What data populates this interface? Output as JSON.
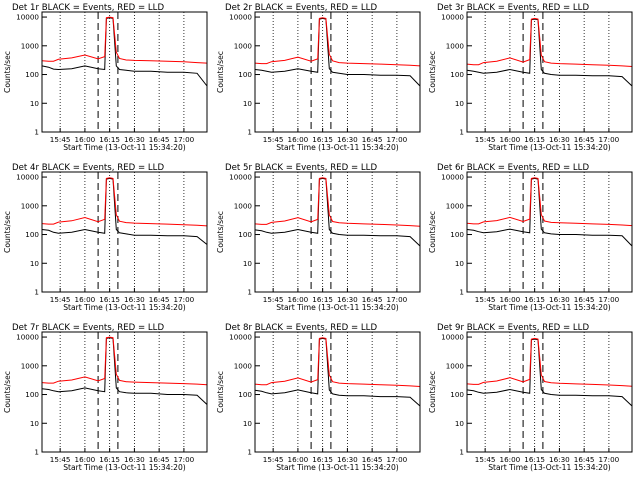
{
  "colors": {
    "events": "#000000",
    "lld": "#ff0000",
    "background": "#ffffff"
  },
  "figure": {
    "xlabel": "Start Time (13-Oct-11 15:34:20)",
    "ylabel": "Counts/sec",
    "x_tick_labels": [
      "15:45",
      "16:00",
      "16:15",
      "16:30",
      "16:45",
      "17:00"
    ],
    "y_tick_labels": [
      "1",
      "10",
      "100",
      "1000",
      "10000"
    ]
  },
  "chart_data": [
    {
      "type": "line",
      "title": "Det 1r BLACK = Events, RED = LLD",
      "scale_y": "log",
      "x": [
        "15:34",
        "15:38",
        "15:41",
        "15:44",
        "15:52",
        "16:00",
        "16:08",
        "16:12",
        "16:13",
        "16:15",
        "16:17",
        "16:19",
        "16:21",
        "16:25",
        "16:30",
        "16:40",
        "16:50",
        "17:00",
        "17:08",
        "17:14"
      ],
      "ylim": [
        1,
        15000
      ],
      "xlim": [
        "15:34",
        "17:14"
      ],
      "series": [
        {
          "name": "Events",
          "values": [
            200,
            180,
            155,
            150,
            160,
            200,
            160,
            150,
            9000,
            9500,
            9000,
            200,
            150,
            140,
            130,
            130,
            120,
            120,
            110,
            40
          ]
        },
        {
          "name": "LLD",
          "values": [
            300,
            290,
            290,
            340,
            380,
            480,
            350,
            420,
            9500,
            10000,
            9500,
            600,
            360,
            320,
            310,
            300,
            290,
            280,
            260,
            250
          ]
        }
      ],
      "dashed_verticals": [
        "16:08",
        "16:20"
      ],
      "dotted_verticals": [
        "15:45",
        "16:00",
        "16:15",
        "16:30",
        "16:45",
        "17:00"
      ]
    },
    {
      "type": "line",
      "title": "Det 2r BLACK = Events, RED = LLD",
      "scale_y": "log",
      "x": [
        "15:34",
        "15:38",
        "15:41",
        "15:44",
        "15:52",
        "16:00",
        "16:08",
        "16:12",
        "16:13",
        "16:15",
        "16:17",
        "16:19",
        "16:21",
        "16:25",
        "16:30",
        "16:40",
        "16:50",
        "17:00",
        "17:08",
        "17:14"
      ],
      "ylim": [
        1,
        15000
      ],
      "xlim": [
        "15:34",
        "17:14"
      ],
      "series": [
        {
          "name": "Events",
          "values": [
            150,
            140,
            130,
            120,
            130,
            160,
            130,
            120,
            8500,
            9000,
            8500,
            160,
            120,
            110,
            100,
            100,
            95,
            95,
            90,
            40
          ]
        },
        {
          "name": "LLD",
          "values": [
            250,
            240,
            240,
            280,
            310,
            400,
            290,
            350,
            9000,
            9500,
            9000,
            500,
            300,
            260,
            250,
            240,
            230,
            220,
            210,
            200
          ]
        }
      ],
      "dashed_verticals": [
        "16:08",
        "16:20"
      ],
      "dotted_verticals": [
        "15:45",
        "16:00",
        "16:15",
        "16:30",
        "16:45",
        "17:00"
      ]
    },
    {
      "type": "line",
      "title": "Det 3r BLACK = Events, RED = LLD",
      "scale_y": "log",
      "x": [
        "15:34",
        "15:38",
        "15:41",
        "15:44",
        "15:52",
        "16:00",
        "16:08",
        "16:12",
        "16:13",
        "16:15",
        "16:17",
        "16:19",
        "16:21",
        "16:25",
        "16:30",
        "16:40",
        "16:50",
        "17:00",
        "17:08",
        "17:14"
      ],
      "ylim": [
        1,
        15000
      ],
      "xlim": [
        "15:34",
        "17:14"
      ],
      "series": [
        {
          "name": "Events",
          "values": [
            140,
            130,
            120,
            110,
            120,
            150,
            120,
            110,
            8000,
            8500,
            8000,
            150,
            110,
            100,
            95,
            95,
            90,
            90,
            85,
            40
          ]
        },
        {
          "name": "LLD",
          "values": [
            230,
            220,
            220,
            260,
            290,
            380,
            270,
            330,
            8500,
            9000,
            8500,
            480,
            280,
            250,
            240,
            230,
            220,
            210,
            200,
            190
          ]
        }
      ],
      "dashed_verticals": [
        "16:08",
        "16:20"
      ],
      "dotted_verticals": [
        "15:45",
        "16:00",
        "16:15",
        "16:30",
        "16:45",
        "17:00"
      ]
    },
    {
      "type": "line",
      "title": "Det 4r BLACK = Events, RED = LLD",
      "scale_y": "log",
      "x": [
        "15:34",
        "15:38",
        "15:41",
        "15:44",
        "15:52",
        "16:00",
        "16:08",
        "16:12",
        "16:13",
        "16:15",
        "16:17",
        "16:19",
        "16:21",
        "16:25",
        "16:30",
        "16:40",
        "16:50",
        "17:00",
        "17:08",
        "17:14"
      ],
      "ylim": [
        1,
        15000
      ],
      "xlim": [
        "15:34",
        "17:14"
      ],
      "series": [
        {
          "name": "Events",
          "values": [
            150,
            140,
            120,
            110,
            120,
            150,
            120,
            110,
            8500,
            9000,
            8500,
            150,
            115,
            105,
            95,
            95,
            90,
            90,
            85,
            45
          ]
        },
        {
          "name": "LLD",
          "values": [
            240,
            230,
            230,
            270,
            300,
            390,
            280,
            340,
            9000,
            9500,
            9000,
            490,
            290,
            260,
            250,
            240,
            230,
            220,
            210,
            200
          ]
        }
      ],
      "dashed_verticals": [
        "16:08",
        "16:20"
      ],
      "dotted_verticals": [
        "15:45",
        "16:00",
        "16:15",
        "16:30",
        "16:45",
        "17:00"
      ]
    },
    {
      "type": "line",
      "title": "Det 5r BLACK = Events, RED = LLD",
      "scale_y": "log",
      "x": [
        "15:34",
        "15:38",
        "15:41",
        "15:44",
        "15:52",
        "16:00",
        "16:08",
        "16:12",
        "16:13",
        "16:15",
        "16:17",
        "16:19",
        "16:21",
        "16:25",
        "16:30",
        "16:40",
        "16:50",
        "17:00",
        "17:08",
        "17:14"
      ],
      "ylim": [
        1,
        15000
      ],
      "xlim": [
        "15:34",
        "17:14"
      ],
      "series": [
        {
          "name": "Events",
          "values": [
            145,
            135,
            120,
            110,
            120,
            150,
            120,
            110,
            8500,
            9000,
            8500,
            150,
            110,
            100,
            95,
            95,
            90,
            90,
            85,
            40
          ]
        },
        {
          "name": "LLD",
          "values": [
            235,
            225,
            225,
            265,
            295,
            385,
            275,
            335,
            9000,
            9500,
            9000,
            485,
            285,
            255,
            245,
            235,
            225,
            215,
            205,
            195
          ]
        }
      ],
      "dashed_verticals": [
        "16:08",
        "16:20"
      ],
      "dotted_verticals": [
        "15:45",
        "16:00",
        "16:15",
        "16:30",
        "16:45",
        "17:00"
      ]
    },
    {
      "type": "line",
      "title": "Det 6r BLACK = Events, RED = LLD",
      "scale_y": "log",
      "x": [
        "15:34",
        "15:38",
        "15:41",
        "15:44",
        "15:52",
        "16:00",
        "16:08",
        "16:12",
        "16:13",
        "16:15",
        "16:17",
        "16:19",
        "16:21",
        "16:25",
        "16:30",
        "16:40",
        "16:50",
        "17:00",
        "17:08",
        "17:14"
      ],
      "ylim": [
        1,
        15000
      ],
      "xlim": [
        "15:34",
        "17:14"
      ],
      "series": [
        {
          "name": "Events",
          "values": [
            150,
            140,
            125,
            115,
            125,
            155,
            125,
            115,
            8500,
            9000,
            8500,
            155,
            115,
            105,
            100,
            100,
            95,
            95,
            90,
            40
          ]
        },
        {
          "name": "LLD",
          "values": [
            245,
            235,
            235,
            275,
            305,
            395,
            285,
            345,
            9000,
            9500,
            9000,
            495,
            295,
            265,
            255,
            245,
            235,
            225,
            215,
            205
          ]
        }
      ],
      "dashed_verticals": [
        "16:08",
        "16:20"
      ],
      "dotted_verticals": [
        "15:45",
        "16:00",
        "16:15",
        "16:30",
        "16:45",
        "17:00"
      ]
    },
    {
      "type": "line",
      "title": "Det 7r BLACK = Events, RED = LLD",
      "scale_y": "log",
      "x": [
        "15:34",
        "15:38",
        "15:41",
        "15:44",
        "15:52",
        "16:00",
        "16:08",
        "16:12",
        "16:13",
        "16:15",
        "16:17",
        "16:19",
        "16:21",
        "16:25",
        "16:30",
        "16:40",
        "16:50",
        "17:00",
        "17:08",
        "17:14"
      ],
      "ylim": [
        1,
        15000
      ],
      "xlim": [
        "15:34",
        "17:14"
      ],
      "series": [
        {
          "name": "Events",
          "values": [
            160,
            150,
            135,
            125,
            135,
            170,
            135,
            125,
            9000,
            9500,
            9000,
            170,
            125,
            115,
            110,
            110,
            100,
            100,
            95,
            45
          ]
        },
        {
          "name": "LLD",
          "values": [
            260,
            250,
            250,
            290,
            320,
            410,
            300,
            360,
            9500,
            10000,
            9500,
            510,
            310,
            280,
            270,
            260,
            250,
            240,
            230,
            220
          ]
        }
      ],
      "dashed_verticals": [
        "16:08",
        "16:20"
      ],
      "dotted_verticals": [
        "15:45",
        "16:00",
        "16:15",
        "16:30",
        "16:45",
        "17:00"
      ]
    },
    {
      "type": "line",
      "title": "Det 8r BLACK = Events, RED = LLD",
      "scale_y": "log",
      "x": [
        "15:34",
        "15:38",
        "15:41",
        "15:44",
        "15:52",
        "16:00",
        "16:08",
        "16:12",
        "16:13",
        "16:15",
        "16:17",
        "16:19",
        "16:21",
        "16:25",
        "16:30",
        "16:40",
        "16:50",
        "17:00",
        "17:08",
        "17:14"
      ],
      "ylim": [
        1,
        15000
      ],
      "xlim": [
        "15:34",
        "17:14"
      ],
      "series": [
        {
          "name": "Events",
          "values": [
            140,
            130,
            115,
            105,
            115,
            145,
            115,
            105,
            8500,
            9000,
            8500,
            145,
            105,
            95,
            90,
            90,
            85,
            85,
            80,
            40
          ]
        },
        {
          "name": "LLD",
          "values": [
            230,
            220,
            220,
            260,
            290,
            380,
            270,
            330,
            9000,
            9500,
            9000,
            480,
            280,
            250,
            240,
            230,
            220,
            210,
            200,
            190
          ]
        }
      ],
      "dashed_verticals": [
        "16:08",
        "16:20"
      ],
      "dotted_verticals": [
        "15:45",
        "16:00",
        "16:15",
        "16:30",
        "16:45",
        "17:00"
      ]
    },
    {
      "type": "line",
      "title": "Det 9r BLACK = Events, RED = LLD",
      "scale_y": "log",
      "x": [
        "15:34",
        "15:38",
        "15:41",
        "15:44",
        "15:52",
        "16:00",
        "16:08",
        "16:12",
        "16:13",
        "16:15",
        "16:17",
        "16:19",
        "16:21",
        "16:25",
        "16:30",
        "16:40",
        "16:50",
        "17:00",
        "17:08",
        "17:14"
      ],
      "ylim": [
        1,
        15000
      ],
      "xlim": [
        "15:34",
        "17:14"
      ],
      "series": [
        {
          "name": "Events",
          "values": [
            145,
            135,
            120,
            110,
            120,
            150,
            120,
            110,
            8000,
            8500,
            8000,
            150,
            110,
            100,
            95,
            95,
            90,
            90,
            85,
            40
          ]
        },
        {
          "name": "LLD",
          "values": [
            235,
            225,
            225,
            265,
            295,
            385,
            275,
            335,
            8500,
            9000,
            8500,
            485,
            285,
            255,
            245,
            235,
            225,
            215,
            205,
            195
          ]
        }
      ],
      "dashed_verticals": [
        "16:08",
        "16:20"
      ],
      "dotted_verticals": [
        "15:45",
        "16:00",
        "16:15",
        "16:30",
        "16:45",
        "17:00"
      ]
    }
  ]
}
